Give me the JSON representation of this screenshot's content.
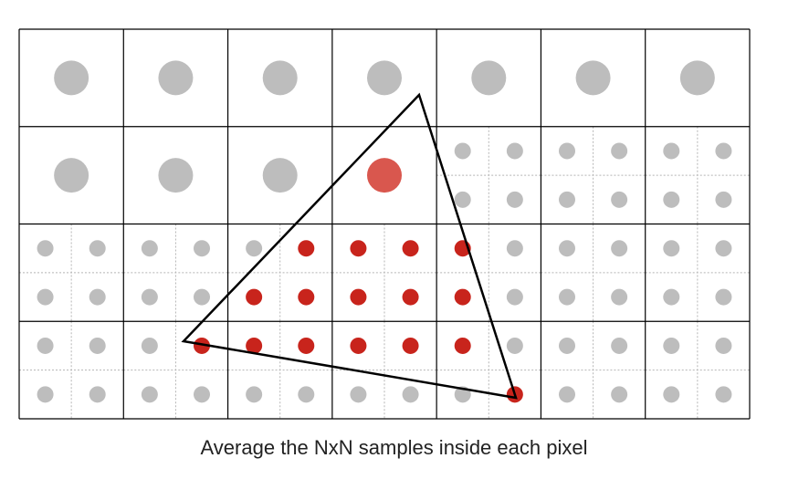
{
  "diagram": {
    "caption": "Average the NxN samples inside each pixel",
    "grid": {
      "columns": 7,
      "rows": 4,
      "samples_per_pixel_row1": 1,
      "samples_per_pixel_supersampled": 4
    },
    "colors": {
      "grid_line": "#000000",
      "subgrid_line": "#b5b5b5",
      "sample_outside": "#bdbdbd",
      "sample_inside": "#c8241c",
      "averaged_pixel": "#d9574e",
      "triangle_stroke": "#000000"
    },
    "pixels_single_sample": [
      {
        "row": 0,
        "col": 0,
        "state": "outside"
      },
      {
        "row": 0,
        "col": 1,
        "state": "outside"
      },
      {
        "row": 0,
        "col": 2,
        "state": "outside"
      },
      {
        "row": 0,
        "col": 3,
        "state": "outside"
      },
      {
        "row": 0,
        "col": 4,
        "state": "outside"
      },
      {
        "row": 0,
        "col": 5,
        "state": "outside"
      },
      {
        "row": 0,
        "col": 6,
        "state": "outside"
      },
      {
        "row": 1,
        "col": 0,
        "state": "outside"
      },
      {
        "row": 1,
        "col": 1,
        "state": "outside"
      },
      {
        "row": 1,
        "col": 2,
        "state": "outside"
      },
      {
        "row": 1,
        "col": 3,
        "state": "averaged"
      }
    ],
    "supersampled_inside": [
      {
        "row": 2,
        "col": 2,
        "sub": [
          0,
          1
        ]
      },
      {
        "row": 2,
        "col": 3,
        "sub": [
          0,
          0
        ]
      },
      {
        "row": 2,
        "col": 3,
        "sub": [
          0,
          1
        ]
      },
      {
        "row": 2,
        "col": 4,
        "sub": [
          0,
          0
        ]
      },
      {
        "row": 2,
        "col": 2,
        "sub": [
          1,
          0
        ]
      },
      {
        "row": 2,
        "col": 2,
        "sub": [
          1,
          1
        ]
      },
      {
        "row": 2,
        "col": 3,
        "sub": [
          1,
          0
        ]
      },
      {
        "row": 2,
        "col": 3,
        "sub": [
          1,
          1
        ]
      },
      {
        "row": 2,
        "col": 4,
        "sub": [
          1,
          0
        ]
      },
      {
        "row": 3,
        "col": 1,
        "sub": [
          0,
          1
        ]
      },
      {
        "row": 3,
        "col": 2,
        "sub": [
          0,
          0
        ]
      },
      {
        "row": 3,
        "col": 2,
        "sub": [
          0,
          1
        ]
      },
      {
        "row": 3,
        "col": 3,
        "sub": [
          0,
          0
        ]
      },
      {
        "row": 3,
        "col": 3,
        "sub": [
          0,
          1
        ]
      },
      {
        "row": 3,
        "col": 4,
        "sub": [
          0,
          0
        ]
      },
      {
        "row": 3,
        "col": 4,
        "sub": [
          1,
          1
        ]
      }
    ]
  }
}
